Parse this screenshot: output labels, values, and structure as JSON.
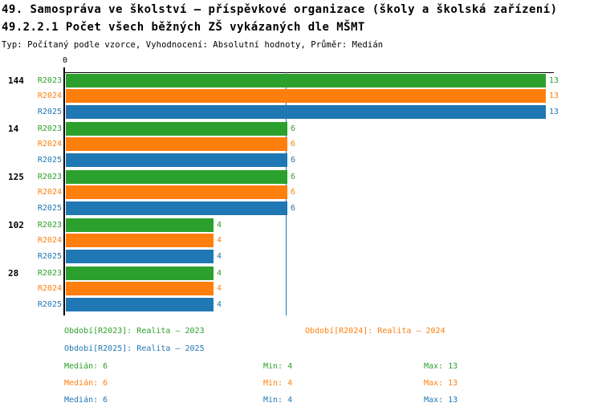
{
  "header": {
    "title": "49. Samospráva ve školství – příspěvkové organizace (školy a školská zařízení)",
    "subtitle": "49.2.2.1 Počet všech běžných ZŠ vykázaných dle MŠMT",
    "meta": "Typ: Počítaný podle vzorce, Vyhodnocení: Absolutní hodnoty, Průměr: Medián"
  },
  "colors": {
    "green": "#2CA02C",
    "orange": "#FF7F0E",
    "blue": "#1F77B4",
    "axis": "#000000",
    "median_line": "#1F77B4"
  },
  "chart_data": {
    "type": "bar",
    "orientation": "horizontal",
    "title": "49.2.2.1 Počet všech běžných ZŠ vykázaných dle MŠMT",
    "axis_origin_label": "0",
    "xlim": [
      0,
      13
    ],
    "grid": false,
    "median_line_value": 6,
    "categories": [
      "144",
      "14",
      "125",
      "102",
      "28"
    ],
    "series": [
      {
        "name": "R2023",
        "color": "#2CA02C",
        "values": [
          13,
          6,
          6,
          4,
          4
        ]
      },
      {
        "name": "R2024",
        "color": "#FF7F0E",
        "values": [
          13,
          6,
          6,
          4,
          4
        ]
      },
      {
        "name": "R2025",
        "color": "#1F77B4",
        "values": [
          13,
          6,
          6,
          4,
          4
        ]
      }
    ]
  },
  "legend": {
    "items": [
      {
        "label": "Období[R2023]: Realita – 2023",
        "color": "green"
      },
      {
        "label": "Období[R2024]: Realita – 2024",
        "color": "orange"
      },
      {
        "label": "Období[R2025]: Realita – 2025",
        "color": "blue"
      }
    ]
  },
  "stats": {
    "rows": [
      {
        "median": "Medián: 6",
        "min": "Min: 4",
        "max": "Max: 13",
        "color": "green"
      },
      {
        "median": "Medián: 6",
        "min": "Min: 4",
        "max": "Max: 13",
        "color": "orange"
      },
      {
        "median": "Medián: 6",
        "min": "Min: 4",
        "max": "Max: 13",
        "color": "blue"
      }
    ]
  }
}
